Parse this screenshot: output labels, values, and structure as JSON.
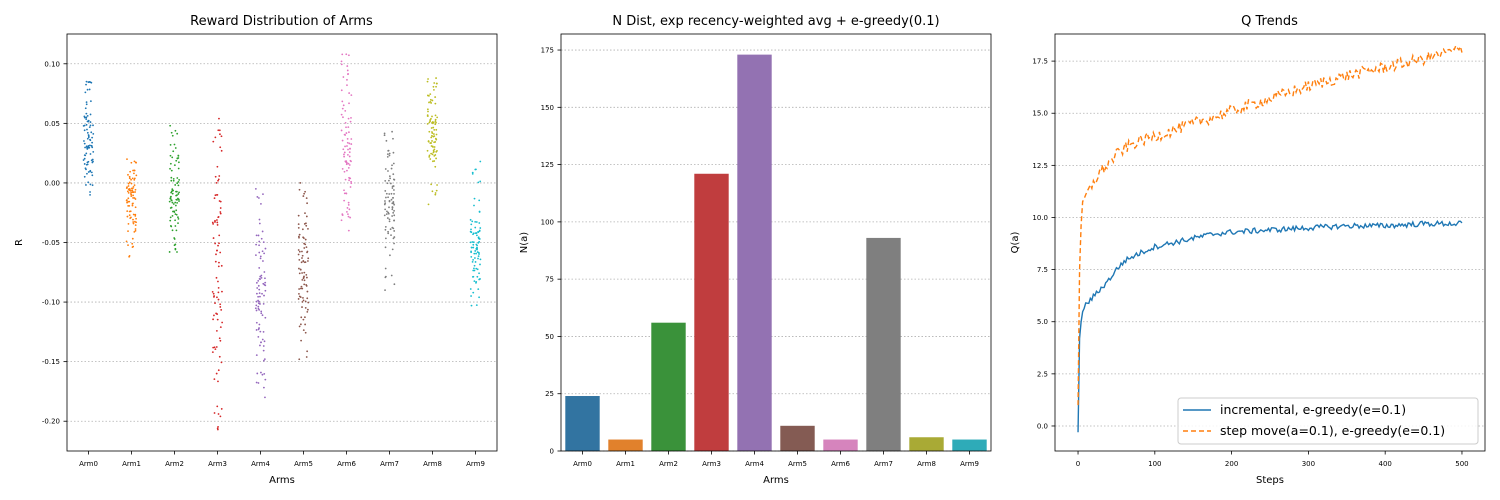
{
  "chart_data": [
    {
      "type": "scatter",
      "title": "Reward Distribution of Arms",
      "xlabel": "Arms",
      "ylabel": "R",
      "categories": [
        "Arm0",
        "Arm1",
        "Arm2",
        "Arm3",
        "Arm4",
        "Arm5",
        "Arm6",
        "Arm7",
        "Arm8",
        "Arm9"
      ],
      "ylim": [
        -0.225,
        0.125
      ],
      "yticks": [
        "0.10",
        "0.05",
        "0.00",
        "-0.05",
        "-0.10",
        "-0.15",
        "-0.20"
      ],
      "grid": "y-dotted",
      "colors": [
        "#1f77b4",
        "#ff7f0e",
        "#2ca02c",
        "#d62728",
        "#9467bd",
        "#8c564b",
        "#e377c2",
        "#7f7f7f",
        "#bcbd22",
        "#17becf"
      ],
      "ranges": [
        {
          "min": -0.01,
          "max": 0.085,
          "center": 0.03
        },
        {
          "min": -0.062,
          "max": 0.02,
          "center": -0.015
        },
        {
          "min": -0.058,
          "max": 0.048,
          "center": -0.005
        },
        {
          "min": -0.207,
          "max": 0.054,
          "center": -0.06
        },
        {
          "min": -0.18,
          "max": -0.005,
          "center": -0.1
        },
        {
          "min": -0.148,
          "max": 0.0,
          "center": -0.075
        },
        {
          "min": -0.04,
          "max": 0.108,
          "center": 0.03
        },
        {
          "min": -0.09,
          "max": 0.043,
          "center": -0.02
        },
        {
          "min": -0.018,
          "max": 0.088,
          "center": 0.035
        },
        {
          "min": -0.103,
          "max": 0.018,
          "center": -0.05
        }
      ]
    },
    {
      "type": "bar",
      "title": "N Dist, exp recency-weighted avg + e-greedy(0.1)",
      "xlabel": "Arms",
      "ylabel": "N(a)",
      "categories": [
        "Arm0",
        "Arm1",
        "Arm2",
        "Arm3",
        "Arm4",
        "Arm5",
        "Arm6",
        "Arm7",
        "Arm8",
        "Arm9"
      ],
      "values": [
        24,
        5,
        56,
        121,
        173,
        11,
        5,
        93,
        6,
        5
      ],
      "ylim": [
        0,
        182
      ],
      "yticks": [
        "0",
        "25",
        "50",
        "75",
        "100",
        "125",
        "150",
        "175"
      ],
      "grid": "y-dotted",
      "colors": [
        "#3274a1",
        "#e1812c",
        "#3a923a",
        "#c03d3e",
        "#9372b2",
        "#845b53",
        "#d684bd",
        "#7f7f7f",
        "#a9aa35",
        "#2eabb8"
      ]
    },
    {
      "type": "line",
      "title": "Q Trends",
      "xlabel": "Steps",
      "ylabel": "Q(a)",
      "xlim": [
        -30,
        530
      ],
      "ylim": [
        -1.2,
        18.8
      ],
      "xticks": [
        "0",
        "100",
        "200",
        "300",
        "400",
        "500"
      ],
      "yticks": [
        "0.0",
        "2.5",
        "5.0",
        "7.5",
        "10.0",
        "12.5",
        "15.0",
        "17.5"
      ],
      "grid": "y-dotted",
      "legend": "bottom-right",
      "series": [
        {
          "name": "incremental, e-greedy(e=0.1)",
          "color": "#1f77b4",
          "style": "solid",
          "x": [
            0,
            2,
            5,
            10,
            15,
            20,
            30,
            40,
            50,
            60,
            75,
            100,
            125,
            150,
            175,
            200,
            250,
            300,
            350,
            400,
            450,
            500
          ],
          "y": [
            -0.3,
            4.2,
            5.4,
            5.8,
            6.0,
            6.2,
            6.6,
            7.0,
            7.5,
            7.9,
            8.2,
            8.6,
            8.8,
            9.0,
            9.2,
            9.3,
            9.4,
            9.5,
            9.6,
            9.6,
            9.7,
            9.7
          ]
        },
        {
          "name": "step move(a=0.1), e-greedy(e=0.1)",
          "color": "#ff7f0e",
          "style": "dashed",
          "x": [
            0,
            2,
            5,
            10,
            15,
            20,
            30,
            40,
            50,
            60,
            75,
            100,
            125,
            150,
            175,
            200,
            250,
            300,
            350,
            400,
            450,
            500
          ],
          "y": [
            1.0,
            7.5,
            10.7,
            11.0,
            11.3,
            11.7,
            12.2,
            12.6,
            13.0,
            13.3,
            13.6,
            13.9,
            14.2,
            14.5,
            14.8,
            15.1,
            15.7,
            16.3,
            16.8,
            17.2,
            17.6,
            18.1
          ]
        }
      ]
    }
  ]
}
